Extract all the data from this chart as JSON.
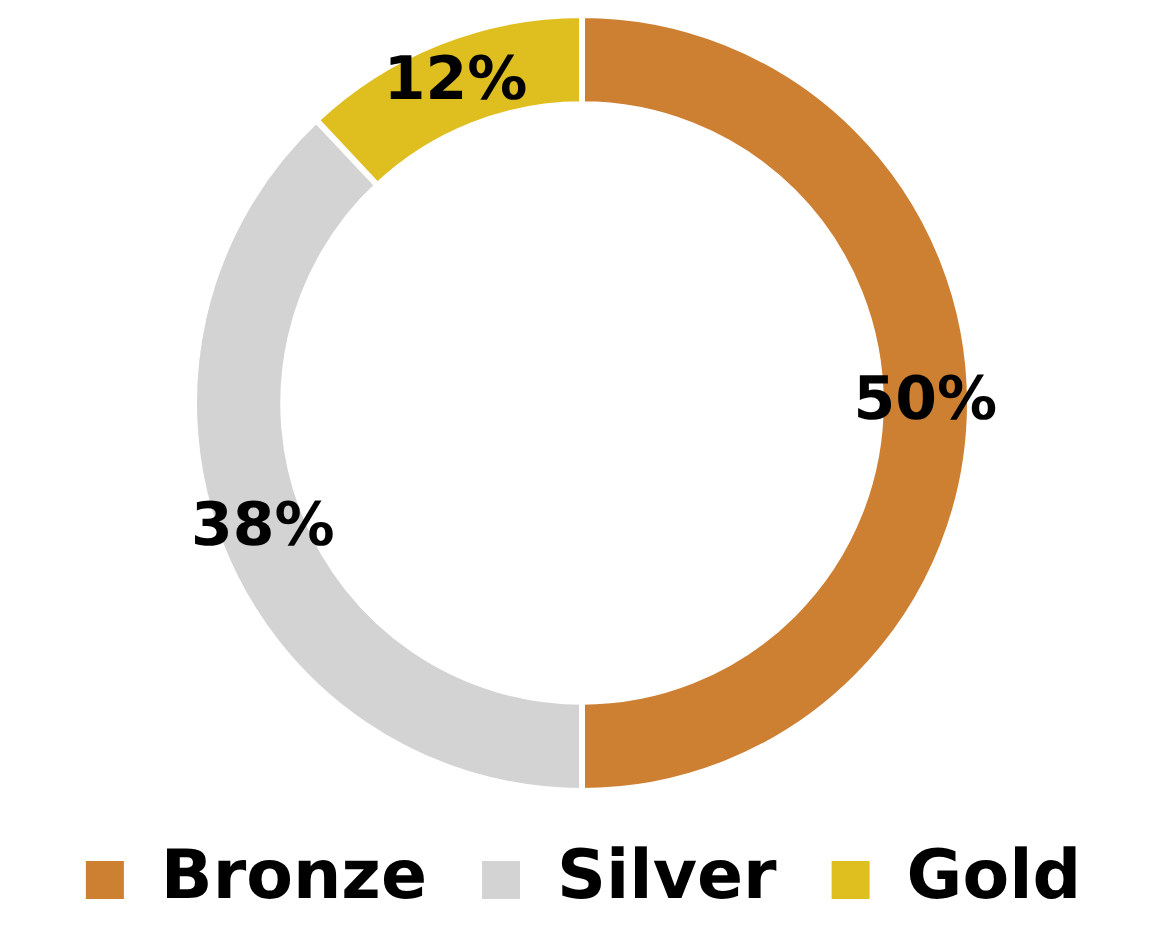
{
  "chart_data": {
    "type": "donut",
    "categories": [
      "Bronze",
      "Silver",
      "Gold"
    ],
    "values": [
      50,
      38,
      12
    ],
    "colors": [
      "#cd7f32",
      "#d3d3d3",
      "#dfbe1f"
    ],
    "value_labels": [
      "50%",
      "38%",
      "12%"
    ],
    "legend": "bottom"
  }
}
